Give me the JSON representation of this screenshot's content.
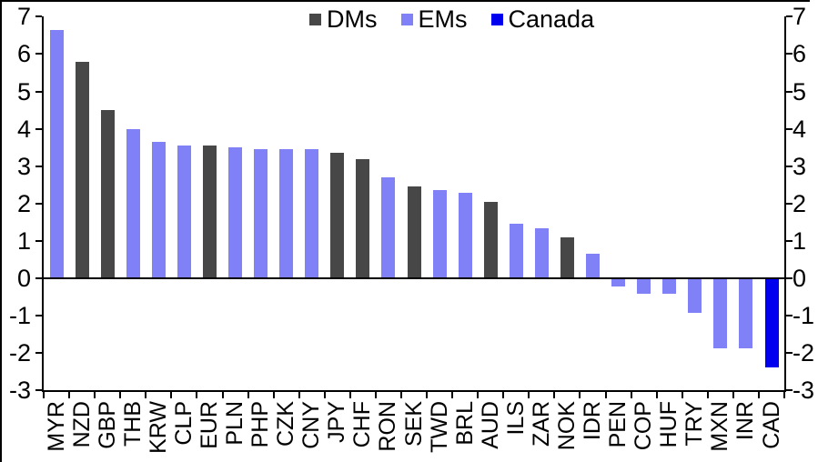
{
  "chart_data": {
    "type": "bar",
    "title": "",
    "legend_position": "top-center",
    "grid": false,
    "dual_y_axis": true,
    "background": "#FFFFFF",
    "axis_color": "#000000",
    "ylim": [
      -3,
      7
    ],
    "ytick_step": 1,
    "yticks": [
      7,
      6,
      5,
      4,
      3,
      2,
      1,
      0,
      -1,
      -2,
      -3
    ],
    "xlabel": "",
    "ylabel": "",
    "groups": [
      {
        "name": "DMs",
        "color": "#474747"
      },
      {
        "name": "EMs",
        "color": "#8181F7"
      },
      {
        "name": "Canada",
        "color": "#0000EE"
      }
    ],
    "points": [
      {
        "label": "MYR",
        "group": "EMs",
        "value": 6.65
      },
      {
        "label": "NZD",
        "group": "DMs",
        "value": 5.8
      },
      {
        "label": "GBP",
        "group": "DMs",
        "value": 4.5
      },
      {
        "label": "THB",
        "group": "EMs",
        "value": 4.0
      },
      {
        "label": "KRW",
        "group": "EMs",
        "value": 3.65
      },
      {
        "label": "CLP",
        "group": "EMs",
        "value": 3.55
      },
      {
        "label": "EUR",
        "group": "DMs",
        "value": 3.55
      },
      {
        "label": "PLN",
        "group": "EMs",
        "value": 3.5
      },
      {
        "label": "PHP",
        "group": "EMs",
        "value": 3.45
      },
      {
        "label": "CZK",
        "group": "EMs",
        "value": 3.45
      },
      {
        "label": "CNY",
        "group": "EMs",
        "value": 3.45
      },
      {
        "label": "JPY",
        "group": "DMs",
        "value": 3.35
      },
      {
        "label": "CHF",
        "group": "DMs",
        "value": 3.2
      },
      {
        "label": "RON",
        "group": "EMs",
        "value": 2.7
      },
      {
        "label": "SEK",
        "group": "DMs",
        "value": 2.45
      },
      {
        "label": "TWD",
        "group": "EMs",
        "value": 2.35
      },
      {
        "label": "BRL",
        "group": "EMs",
        "value": 2.3
      },
      {
        "label": "AUD",
        "group": "DMs",
        "value": 2.05
      },
      {
        "label": "ILS",
        "group": "EMs",
        "value": 1.45
      },
      {
        "label": "ZAR",
        "group": "EMs",
        "value": 1.35
      },
      {
        "label": "NOK",
        "group": "DMs",
        "value": 1.1
      },
      {
        "label": "IDR",
        "group": "EMs",
        "value": 0.65
      },
      {
        "label": "PEN",
        "group": "EMs",
        "value": -0.2
      },
      {
        "label": "COP",
        "group": "EMs",
        "value": -0.4
      },
      {
        "label": "HUF",
        "group": "EMs",
        "value": -0.4
      },
      {
        "label": "TRY",
        "group": "EMs",
        "value": -0.9
      },
      {
        "label": "MXN",
        "group": "EMs",
        "value": -1.85
      },
      {
        "label": "INR",
        "group": "EMs",
        "value": -1.85
      },
      {
        "label": "CAD",
        "group": "Canada",
        "value": -2.35
      }
    ]
  }
}
